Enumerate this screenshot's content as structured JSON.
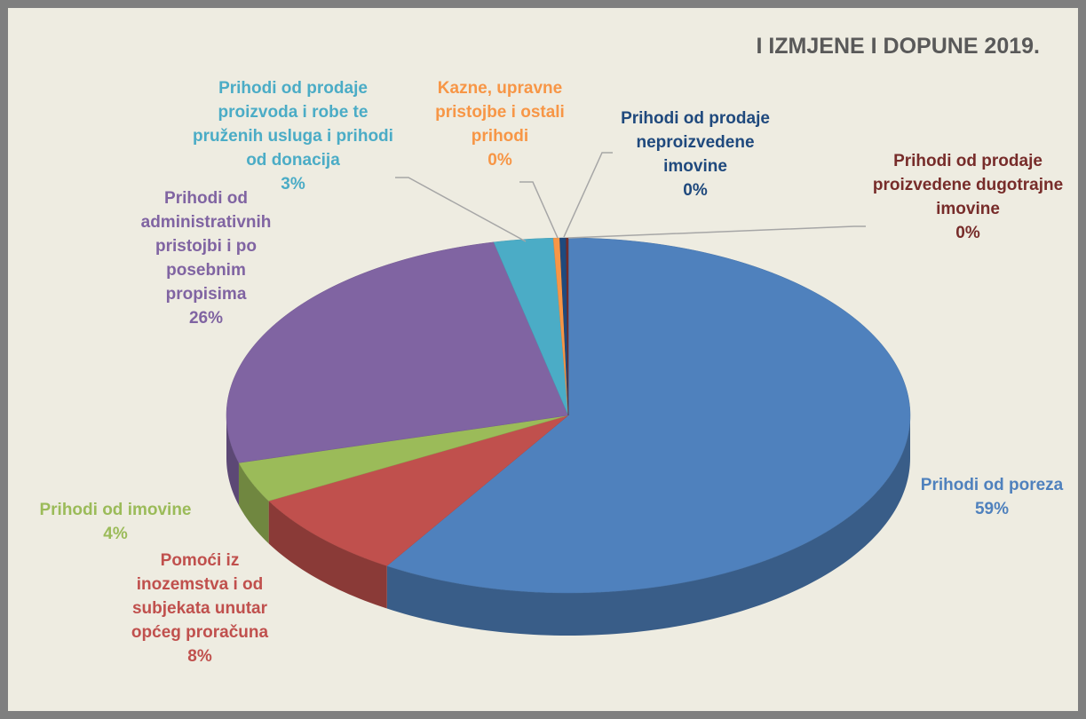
{
  "chart_data": {
    "type": "pie",
    "title": "I IZMJENE I DOPUNE 2019.",
    "categories": [
      "Prihodi od poreza",
      "Pomoći iz inozemstva i od subjekata unutar općeg proračuna",
      "Prihodi od imovine",
      "Prihodi od administrativnih pristojbi i po posebnim propisima",
      "Prihodi od prodaje proizvoda i robe te pruženih usluga i prihodi od donacija",
      "Kazne, upravne pristojbe i ostali prihodi",
      "Prihodi od prodaje neproizvedene imovine",
      "Prihodi od prodaje proizvedene dugotrajne imovine"
    ],
    "values": [
      58.9,
      8.1,
      3.7,
      25.8,
      2.8,
      0.3,
      0.3,
      0.1
    ],
    "value_labels": [
      "59%",
      "8%",
      "4%",
      "26%",
      "3%",
      "0%",
      "0%",
      "0%"
    ],
    "colors": [
      "#4f81bd",
      "#c0504d",
      "#9bbb59",
      "#8064a2",
      "#4bacc6",
      "#f79646",
      "#1f497d",
      "#772c2a"
    ]
  }
}
